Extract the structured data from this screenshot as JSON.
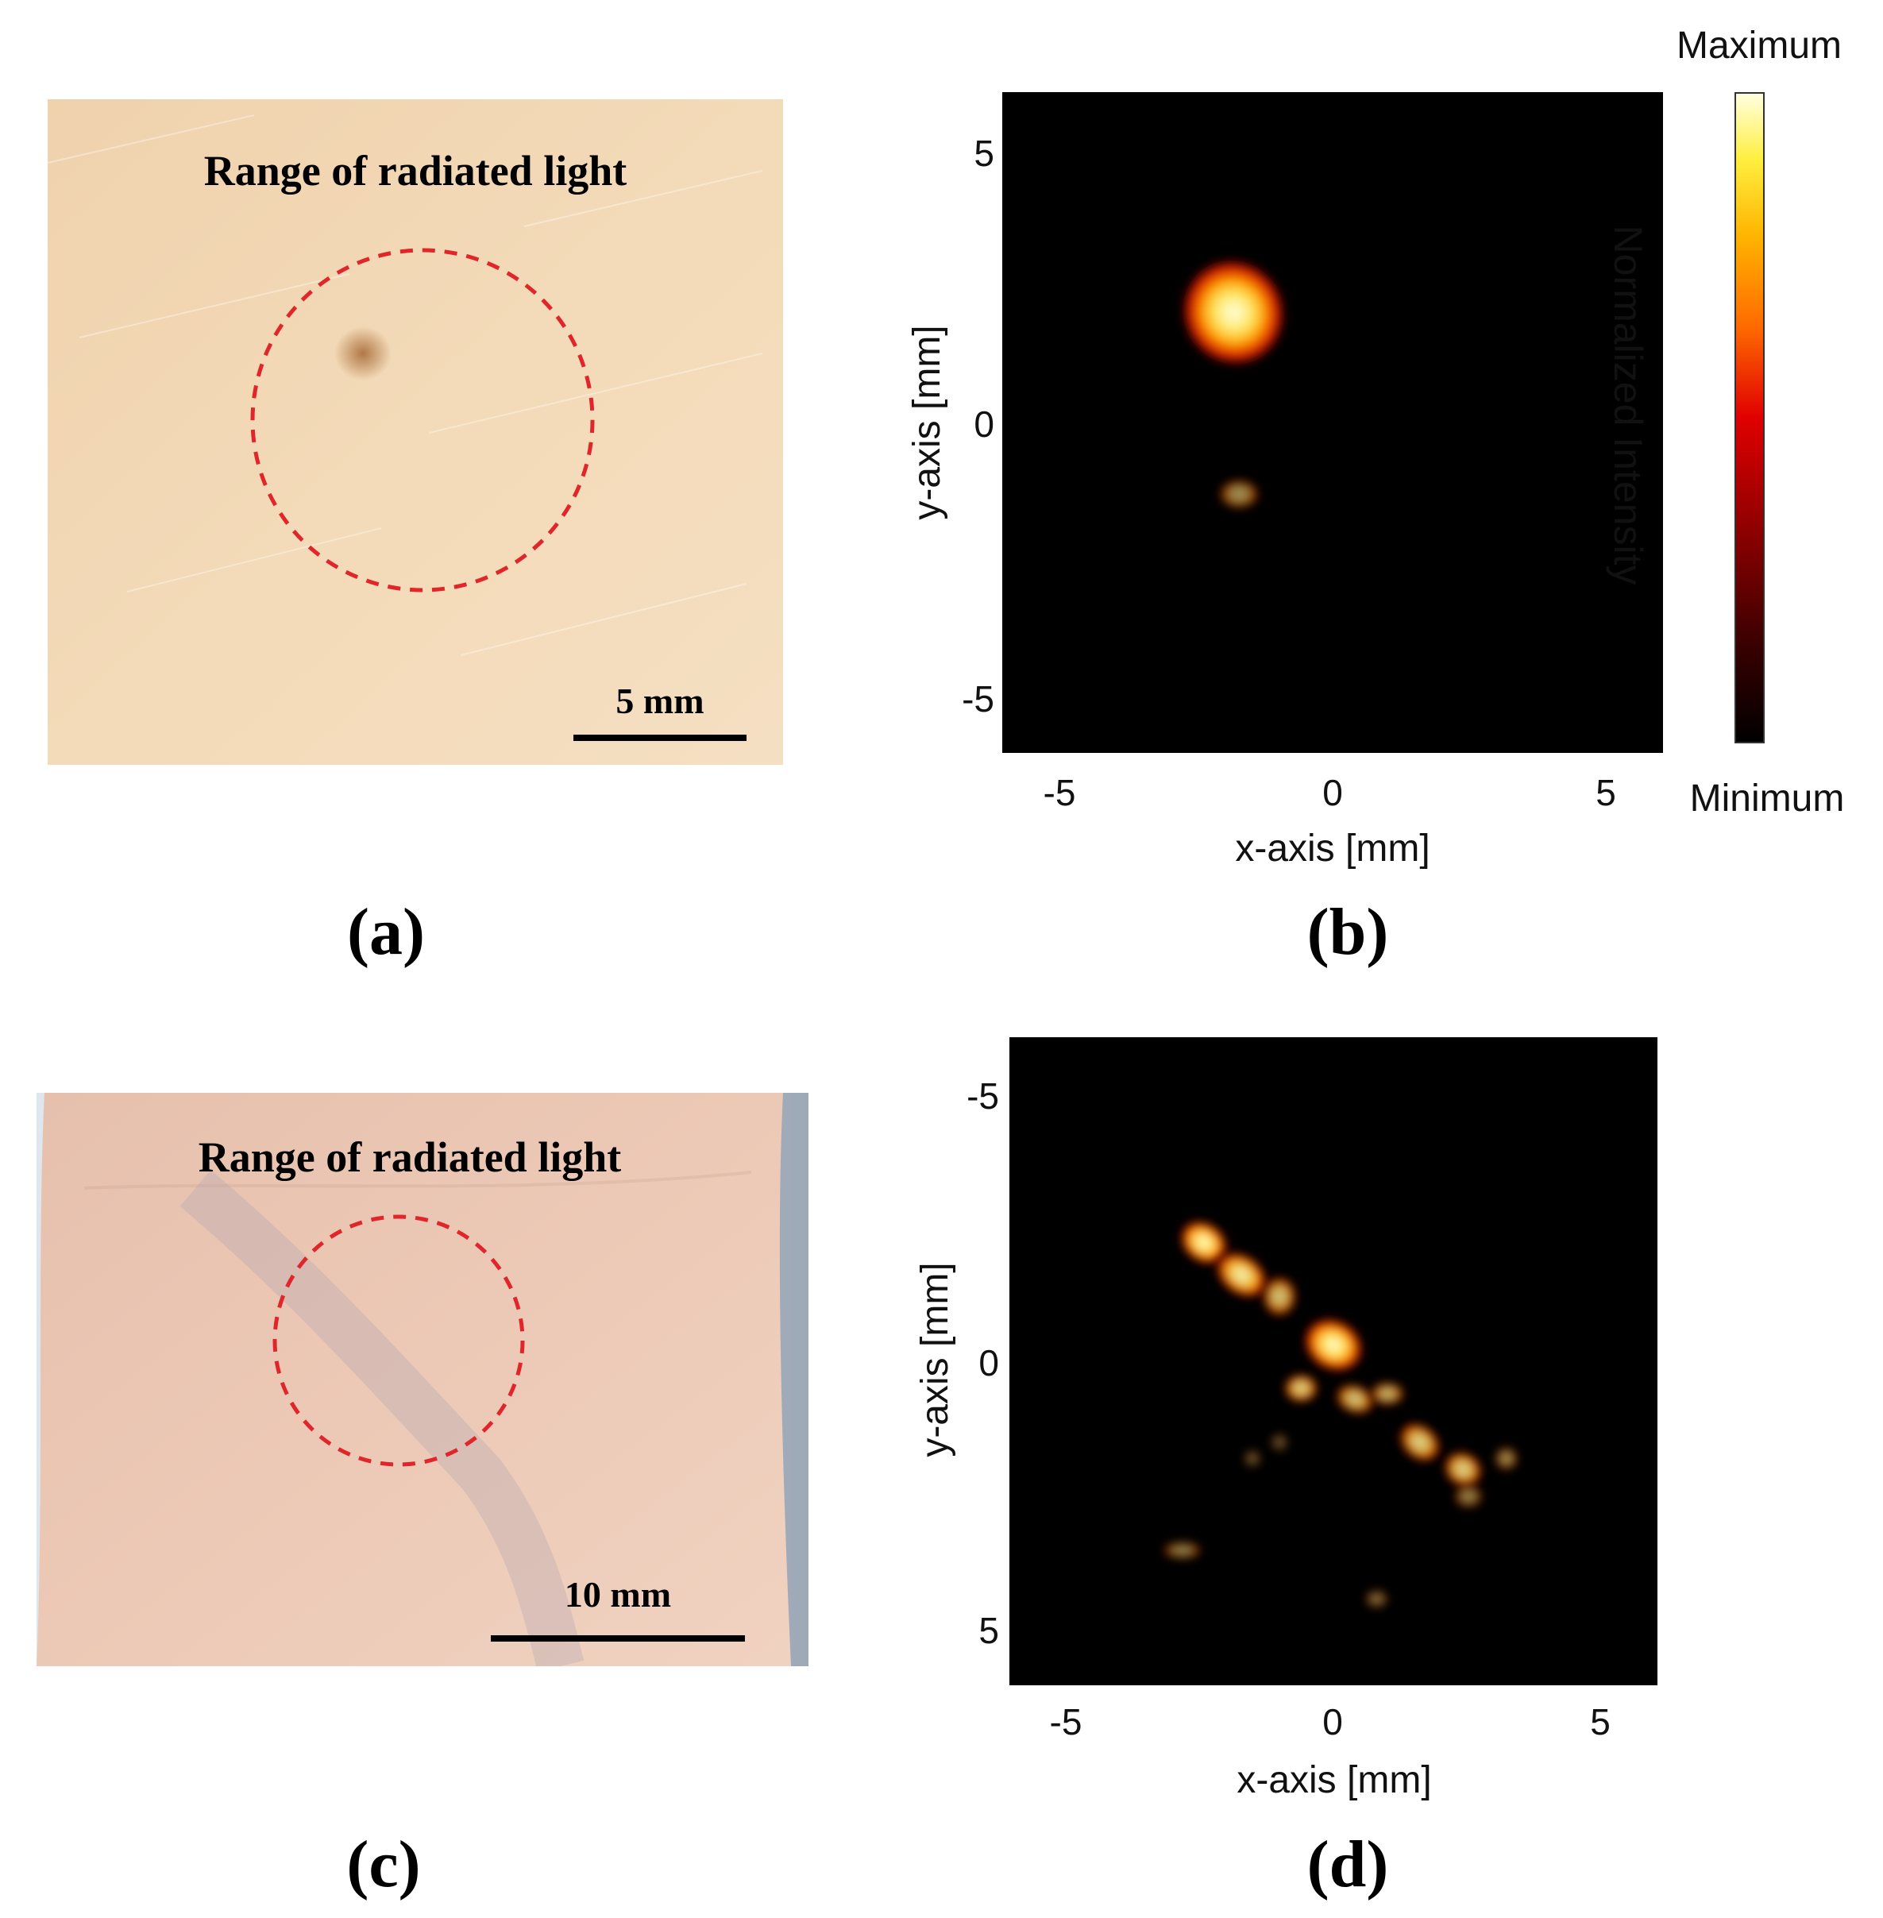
{
  "panels": {
    "a": {
      "label": "(a)",
      "photo_caption": "Range of radiated light",
      "scale_bar": "5 mm",
      "skin_color": "#f2d7b4",
      "circle_color": "#e0262b"
    },
    "b": {
      "label": "(b)",
      "xlabel": "x-axis [mm]",
      "ylabel": "y-axis [mm]",
      "xticks": [
        "-5",
        "0",
        "5"
      ],
      "yticks": [
        "5",
        "0",
        "-5"
      ],
      "colorbar": {
        "max_label": "Maximum",
        "min_label": "Minimum",
        "title": "Normalized Intensity"
      }
    },
    "c": {
      "label": "(c)",
      "photo_caption": "Range of radiated light",
      "scale_bar": "10 mm",
      "skin_color": "#e9c4b0",
      "circle_color": "#e0262b"
    },
    "d": {
      "label": "(d)",
      "xlabel": "x-axis [mm]",
      "ylabel": "y-axis [mm]",
      "xticks": [
        "-5",
        "0",
        "5"
      ],
      "yticks": [
        "-5",
        "0",
        "5"
      ]
    }
  },
  "chart_data": [
    {
      "type": "heatmap",
      "panel": "b",
      "xlabel": "x-axis [mm]",
      "ylabel": "y-axis [mm]",
      "xlim": [
        -6,
        6
      ],
      "ylim": [
        -6,
        6
      ],
      "xticks": [
        -5,
        0,
        5
      ],
      "yticks": [
        -5,
        0,
        5
      ],
      "y_direction": "up",
      "colormap": "hot",
      "colorbar": {
        "max_label": "Maximum",
        "min_label": "Minimum",
        "title": "Normalized Intensity"
      },
      "hotspots": [
        {
          "x": -1.8,
          "y": 2.0,
          "rx": 0.9,
          "ry": 0.95,
          "rotation": -30,
          "intensity": 1.0
        },
        {
          "x": -1.7,
          "y": -1.3,
          "rx": 0.35,
          "ry": 0.25,
          "rotation": 0,
          "intensity": 0.6
        }
      ]
    },
    {
      "type": "heatmap",
      "panel": "d",
      "xlabel": "x-axis [mm]",
      "ylabel": "y-axis [mm]",
      "xlim": [
        -6,
        6
      ],
      "ylim": [
        -6,
        6
      ],
      "xticks": [
        -5,
        0,
        5
      ],
      "yticks": [
        -5,
        0,
        5
      ],
      "y_direction": "down",
      "colormap": "hot",
      "hotspots": [
        {
          "x": -2.4,
          "y": -2.2,
          "rx": 0.45,
          "ry": 0.35,
          "rotation": 35,
          "intensity": 1.0
        },
        {
          "x": -1.7,
          "y": -1.6,
          "rx": 0.5,
          "ry": 0.35,
          "rotation": 35,
          "intensity": 0.95
        },
        {
          "x": -1.0,
          "y": -1.2,
          "rx": 0.3,
          "ry": 0.35,
          "rotation": 0,
          "intensity": 0.8
        },
        {
          "x": 0.0,
          "y": -0.3,
          "rx": 0.55,
          "ry": 0.45,
          "rotation": 30,
          "intensity": 1.0
        },
        {
          "x": -0.6,
          "y": 0.5,
          "rx": 0.3,
          "ry": 0.25,
          "rotation": 0,
          "intensity": 0.85
        },
        {
          "x": 0.4,
          "y": 0.7,
          "rx": 0.35,
          "ry": 0.25,
          "rotation": 20,
          "intensity": 0.8
        },
        {
          "x": 1.0,
          "y": 0.6,
          "rx": 0.3,
          "ry": 0.2,
          "rotation": 0,
          "intensity": 0.75
        },
        {
          "x": 1.6,
          "y": 1.5,
          "rx": 0.4,
          "ry": 0.3,
          "rotation": 40,
          "intensity": 0.85
        },
        {
          "x": 2.4,
          "y": 2.0,
          "rx": 0.35,
          "ry": 0.3,
          "rotation": 30,
          "intensity": 0.85
        },
        {
          "x": 2.5,
          "y": 2.5,
          "rx": 0.25,
          "ry": 0.2,
          "rotation": 0,
          "intensity": 0.55
        },
        {
          "x": 3.2,
          "y": 1.8,
          "rx": 0.2,
          "ry": 0.2,
          "rotation": 0,
          "intensity": 0.6
        },
        {
          "x": -2.8,
          "y": 3.5,
          "rx": 0.35,
          "ry": 0.15,
          "rotation": 0,
          "intensity": 0.55
        },
        {
          "x": 0.8,
          "y": 4.4,
          "rx": 0.2,
          "ry": 0.15,
          "rotation": 0,
          "intensity": 0.5
        },
        {
          "x": -1.0,
          "y": 1.5,
          "rx": 0.15,
          "ry": 0.15,
          "rotation": 0,
          "intensity": 0.4
        },
        {
          "x": -1.5,
          "y": 1.8,
          "rx": 0.15,
          "ry": 0.15,
          "rotation": 0,
          "intensity": 0.4
        }
      ]
    }
  ]
}
